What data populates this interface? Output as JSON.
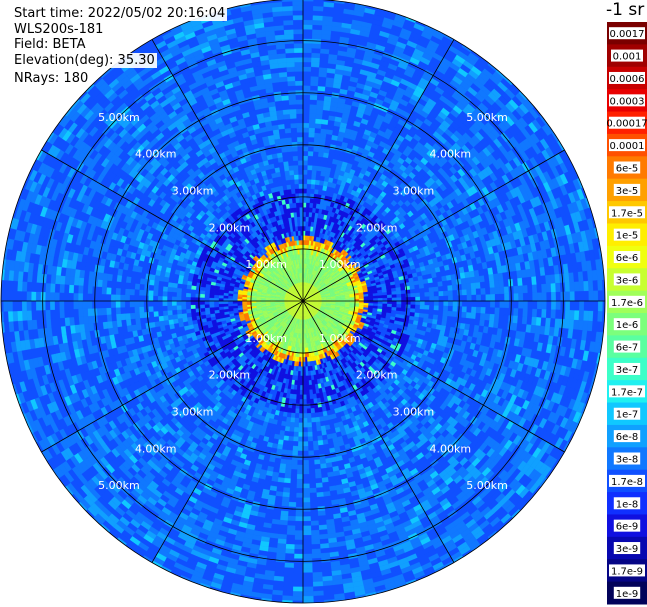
{
  "header": {
    "start_time": "Start time: 2022/05/02 20:16:04",
    "instrument": "WLS200s-181",
    "field": "Field: BETA",
    "elevation": "Elevation(deg): 35.30",
    "nrays": "NRays: 180",
    "units": "-1 sr"
  },
  "chart_data": {
    "type": "heatmap",
    "projection": "polar PPI",
    "field": "BETA",
    "range_rings": [
      {
        "range_km": 1.0,
        "label": "1.00km"
      },
      {
        "range_km": 2.0,
        "label": "2.00km"
      },
      {
        "range_km": 3.0,
        "label": "3.00km"
      },
      {
        "range_km": 4.0,
        "label": "4.00km"
      },
      {
        "range_km": 5.0,
        "label": "5.00km"
      }
    ],
    "ring_label_azimuths_deg": [
      315,
      45,
      135,
      225
    ],
    "spokes_deg": [
      0,
      30,
      60,
      90,
      120,
      150,
      180,
      210,
      240,
      270,
      300,
      330
    ],
    "max_range_km": 5.8,
    "color_scale": {
      "type": "log",
      "levels": [
        {
          "label": "0.0017",
          "color": "#7a0000"
        },
        {
          "label": "0.001",
          "color": "#a00000"
        },
        {
          "label": "0.0006",
          "color": "#c80000"
        },
        {
          "label": "0.0003",
          "color": "#e80000"
        },
        {
          "label": "0.00017",
          "color": "#ff2000"
        },
        {
          "label": "0.0001",
          "color": "#ff5000"
        },
        {
          "label": "6e-5",
          "color": "#ff7a00"
        },
        {
          "label": "3e-5",
          "color": "#ffa000"
        },
        {
          "label": "1.7e-5",
          "color": "#ffc800"
        },
        {
          "label": "1e-5",
          "color": "#ffee00"
        },
        {
          "label": "6e-6",
          "color": "#f0ff10"
        },
        {
          "label": "3e-6",
          "color": "#c8ff30"
        },
        {
          "label": "1.7e-6",
          "color": "#a0ff5a"
        },
        {
          "label": "1e-6",
          "color": "#7cff7c"
        },
        {
          "label": "6e-7",
          "color": "#5affa0"
        },
        {
          "label": "3e-7",
          "color": "#3cffc8"
        },
        {
          "label": "1.7e-7",
          "color": "#20f0f0"
        },
        {
          "label": "1e-7",
          "color": "#10c8ff"
        },
        {
          "label": "6e-8",
          "color": "#10a0ff"
        },
        {
          "label": "3e-8",
          "color": "#1078ff"
        },
        {
          "label": "1.7e-8",
          "color": "#1050ff"
        },
        {
          "label": "1e-8",
          "color": "#1030ff"
        },
        {
          "label": "6e-9",
          "color": "#1010e0"
        },
        {
          "label": "3e-9",
          "color": "#0808b0"
        },
        {
          "label": "1.7e-9",
          "color": "#050585"
        },
        {
          "label": "1e-9",
          "color": "#02025a"
        }
      ]
    },
    "observed_structure": [
      {
        "range_km": [
          0.0,
          1.0
        ],
        "approx_value": "1.7e-6 to 1e-6"
      },
      {
        "range_km": [
          1.0,
          1.25
        ],
        "approx_value": "3e-5 to 1e-5"
      },
      {
        "range_km": [
          1.25,
          2.2
        ],
        "approx_value": "3e-8 to 1e-8"
      },
      {
        "range_km": [
          2.2,
          5.8
        ],
        "approx_value": "6e-8 to 1.7e-8"
      }
    ]
  }
}
